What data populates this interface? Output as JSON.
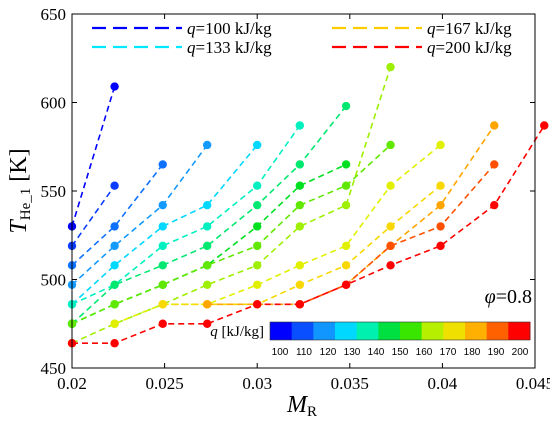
{
  "chart_data": {
    "type": "scatter",
    "xlabel": "M",
    "xlabel_sub": "R",
    "ylabel": "T",
    "ylabel_sub": "He_1",
    "ylabel_unit": "[K]",
    "xlim": [
      0.02,
      0.045
    ],
    "ylim": [
      450,
      650
    ],
    "xticks": [
      {
        "v": 0.02,
        "label": "0.02"
      },
      {
        "v": 0.025,
        "label": "0.025"
      },
      {
        "v": 0.03,
        "label": "0.03"
      },
      {
        "v": 0.035,
        "label": "0.035"
      },
      {
        "v": 0.04,
        "label": "0.04"
      },
      {
        "v": 0.045,
        "label": "0.045"
      }
    ],
    "yticks": [
      {
        "v": 450,
        "label": "450"
      },
      {
        "v": 500,
        "label": "500"
      },
      {
        "v": 550,
        "label": "550"
      },
      {
        "v": 600,
        "label": "600"
      },
      {
        "v": 650,
        "label": "650"
      }
    ],
    "grid": false,
    "annotation": "φ=0.8",
    "colorbar": {
      "label": "q [kJ/kg]",
      "ticks": [
        "100",
        "110",
        "120",
        "130",
        "140",
        "150",
        "160",
        "170",
        "180",
        "190",
        "200"
      ],
      "colors": [
        "#0000ff",
        "#0a4fff",
        "#1196ff",
        "#00d8ff",
        "#00f0b0",
        "#00e040",
        "#39e600",
        "#b6f000",
        "#f0e000",
        "#ffb000",
        "#ff6000",
        "#ff0000"
      ]
    },
    "legend": [
      {
        "label": "q=100 kJ/kg",
        "color": "#0000ff"
      },
      {
        "label": "q=133 kJ/kg",
        "color": "#00e8ff"
      },
      {
        "label": "q=167 kJ/kg",
        "color": "#ffcc00"
      },
      {
        "label": "q=200 kJ/kg",
        "color": "#ff0000"
      }
    ],
    "series": [
      {
        "color": "#0000ff",
        "x": [
          0.02,
          0.0223
        ],
        "y": [
          530,
          609
        ]
      },
      {
        "color": "#0a3cff",
        "x": [
          0.02,
          0.0223
        ],
        "y": [
          519,
          553
        ]
      },
      {
        "color": "#0d70ff",
        "x": [
          0.02,
          0.0223,
          0.0249
        ],
        "y": [
          508,
          530,
          565
        ]
      },
      {
        "color": "#129aff",
        "x": [
          0.02,
          0.0223,
          0.0249,
          0.0273
        ],
        "y": [
          497,
          519,
          542,
          576
        ]
      },
      {
        "color": "#00d8ff",
        "x": [
          0.02,
          0.0223,
          0.0249,
          0.0273,
          0.03
        ],
        "y": [
          486,
          508,
          530,
          542,
          576
        ]
      },
      {
        "color": "#00f0c0",
        "x": [
          0.02,
          0.0223,
          0.0249,
          0.0273,
          0.03,
          0.0323
        ],
        "y": [
          486,
          497,
          519,
          530,
          553,
          587
        ]
      },
      {
        "color": "#00e870",
        "x": [
          0.02,
          0.0223,
          0.0249,
          0.0273,
          0.03,
          0.0323,
          0.0348
        ],
        "y": [
          475,
          497,
          508,
          519,
          542,
          565,
          598
        ]
      },
      {
        "color": "#00e020",
        "x": [
          0.02,
          0.0223,
          0.0249,
          0.0273,
          0.03,
          0.0323,
          0.0348
        ],
        "y": [
          475,
          486,
          497,
          508,
          530,
          553,
          565
        ]
      },
      {
        "color": "#60e800",
        "x": [
          0.02,
          0.0223,
          0.0249,
          0.0273,
          0.03,
          0.0323,
          0.0348,
          0.0372
        ],
        "y": [
          475,
          486,
          497,
          508,
          519,
          542,
          553,
          576
        ]
      },
      {
        "color": "#9ef000",
        "x": [
          0.02,
          0.0223,
          0.0249,
          0.0273,
          0.03,
          0.0323,
          0.0348,
          0.0372
        ],
        "y": [
          464,
          475,
          486,
          497,
          508,
          530,
          542,
          620
        ]
      },
      {
        "color": "#e0f000",
        "x": [
          0.0223,
          0.0249,
          0.0273,
          0.03,
          0.0323,
          0.0348,
          0.0372,
          0.0399
        ],
        "y": [
          475,
          486,
          486,
          497,
          508,
          519,
          553,
          576
        ]
      },
      {
        "color": "#f8d800",
        "x": [
          0.0249,
          0.0273,
          0.03,
          0.0323,
          0.0348,
          0.0372,
          0.0399
        ],
        "y": [
          486,
          486,
          486,
          497,
          508,
          530,
          553
        ]
      },
      {
        "color": "#ffa500",
        "x": [
          0.0273,
          0.03,
          0.0323,
          0.0348,
          0.0372,
          0.0399,
          0.0428
        ],
        "y": [
          486,
          486,
          486,
          497,
          519,
          542,
          587
        ]
      },
      {
        "color": "#ff5000",
        "x": [
          0.0323,
          0.0348,
          0.0372,
          0.0399,
          0.0428
        ],
        "y": [
          486,
          497,
          519,
          530,
          565
        ]
      },
      {
        "color": "#ff0000",
        "x": [
          0.02,
          0.0223,
          0.0249,
          0.0273,
          0.03,
          0.0323,
          0.0348,
          0.0372,
          0.0399,
          0.0428,
          0.0455
        ],
        "y": [
          464,
          464,
          475,
          475,
          486,
          486,
          497,
          508,
          519,
          542,
          587
        ]
      }
    ]
  }
}
